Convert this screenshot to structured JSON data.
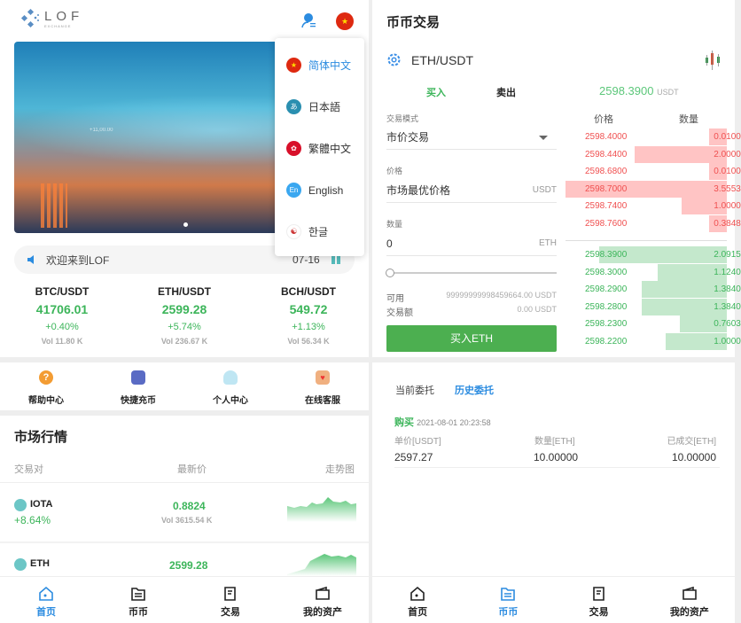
{
  "left": {
    "logo_text": "LOF",
    "logo_sub": "EXCHANGE",
    "languages": [
      {
        "label": "简体中文",
        "icon": "cn-flag-icon",
        "active": true
      },
      {
        "label": "日本語",
        "icon": "jp-icon",
        "active": false
      },
      {
        "label": "繁體中文",
        "icon": "hk-flag-icon",
        "active": false
      },
      {
        "label": "English",
        "icon": "en-icon",
        "active": false
      },
      {
        "label": "한글",
        "icon": "kr-flag-icon",
        "active": false
      }
    ],
    "banner_text": "+11,00.00",
    "notice": {
      "text": "欢迎来到LOF",
      "date": "07-16"
    },
    "tickers": [
      {
        "pair": "BTC/USDT",
        "price": "41706.01",
        "change": "+0.40%",
        "vol": "Vol 11.80 K"
      },
      {
        "pair": "ETH/USDT",
        "price": "2599.28",
        "change": "+5.74%",
        "vol": "Vol 236.67 K"
      },
      {
        "pair": "BCH/USDT",
        "price": "549.72",
        "change": "+1.13%",
        "vol": "Vol 56.34 K"
      }
    ],
    "quick": [
      {
        "label": "帮助中心",
        "color": "#f39c33"
      },
      {
        "label": "快捷充币",
        "color": "#5a6bc4"
      },
      {
        "label": "个人中心",
        "color": "#5bc0de"
      },
      {
        "label": "在线客服",
        "color": "#f0b080"
      }
    ],
    "market": {
      "title": "市场行情",
      "headers": [
        "交易对",
        "最新价",
        "走势图"
      ],
      "rows": [
        {
          "coin": "IOTA",
          "change": "+8.64%",
          "price": "0.8824",
          "vol": "Vol 3615.54 K"
        },
        {
          "coin": "ETH",
          "change": "",
          "price": "2599.28",
          "vol": ""
        }
      ]
    },
    "nav": [
      "首页",
      "币币",
      "交易",
      "我的资产"
    ],
    "nav_active": 0
  },
  "right": {
    "title": "币币交易",
    "pair": "ETH/USDT",
    "tabs": {
      "buy": "买入",
      "sell": "卖出"
    },
    "last_price": "2598.3900",
    "last_unit": "USDT",
    "form": {
      "mode_label": "交易模式",
      "mode_value": "市价交易",
      "price_label": "价格",
      "price_value": "市场最优价格",
      "price_unit": "USDT",
      "qty_label": "数量",
      "qty_value": "0",
      "qty_unit": "ETH",
      "slider_percent": 0,
      "avail_label": "可用",
      "avail_value": "99999999998459664.00 USDT",
      "amount_label": "交易额",
      "amount_value": "0.00 USDT",
      "submit": "买入ETH"
    },
    "book": {
      "headers": [
        "价格",
        "数量"
      ],
      "asks": [
        {
          "price": "2598.4000",
          "qty": "0.0100",
          "depth": 0.11
        },
        {
          "price": "2598.4400",
          "qty": "2.0000",
          "depth": 0.57
        },
        {
          "price": "2598.6800",
          "qty": "0.0100",
          "depth": 0.11
        },
        {
          "price": "2598.7000",
          "qty": "3.5553",
          "depth": 1.0
        },
        {
          "price": "2598.7400",
          "qty": "1.0000",
          "depth": 0.28
        },
        {
          "price": "2598.7600",
          "qty": "0.3848",
          "depth": 0.11
        }
      ],
      "bids": [
        {
          "price": "2598.3900",
          "qty": "2.0915",
          "depth": 0.79
        },
        {
          "price": "2598.3000",
          "qty": "1.1240",
          "depth": 0.43
        },
        {
          "price": "2598.2900",
          "qty": "1.3840",
          "depth": 0.53
        },
        {
          "price": "2598.2800",
          "qty": "1.3840",
          "depth": 0.53
        },
        {
          "price": "2598.2300",
          "qty": "0.7603",
          "depth": 0.29
        },
        {
          "price": "2598.2200",
          "qty": "1.0000",
          "depth": 0.38
        }
      ]
    },
    "orders": {
      "tabs": [
        "当前委托",
        "历史委托"
      ],
      "active_tab": 1,
      "record": {
        "side": "购买",
        "time": "2021-08-01 20:23:58",
        "headers": [
          "单价[USDT]",
          "数量[ETH]",
          "已成交[ETH]"
        ],
        "values": [
          "2597.27",
          "10.00000",
          "10.00000"
        ]
      }
    },
    "nav": [
      "首页",
      "币币",
      "交易",
      "我的资产"
    ],
    "nav_active": 1
  },
  "colors": {
    "green": "#3cb55a",
    "red": "#f05050",
    "blue": "#2c8ce0",
    "button": "#4caf50"
  }
}
